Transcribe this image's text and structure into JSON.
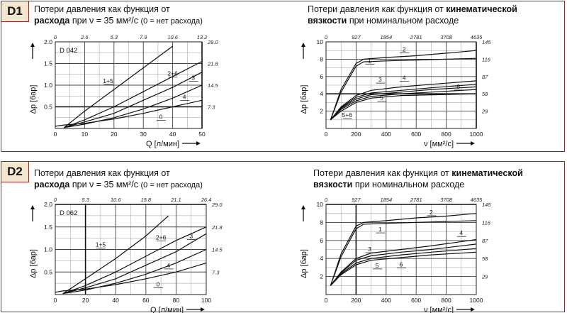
{
  "panels": [
    {
      "tag": "D1",
      "flow": {
        "title": {
          "l1": "Потери давления как функция от",
          "l2b": "расхода",
          "l2a": " при ν = 35 мм²/с ",
          "l2c": "(0 = нет расхода)"
        },
        "model": "D 042",
        "xlabel": "Q [л/мин]",
        "ylabel": "Δp [бар]",
        "xticks": [
          "0",
          "10",
          "20",
          "30",
          "40",
          "50"
        ],
        "yticks": [
          "0.5",
          "1.0",
          "1.5",
          "2.0"
        ],
        "topticks": [
          "0",
          "2.6",
          "5.3",
          "7.9",
          "10.6",
          "13.2"
        ],
        "rightticks": [
          "29.0",
          "21.8",
          "14.5",
          "7.3"
        ]
      },
      "visc": {
        "title": {
          "l1a": "Потери давления как функция от ",
          "l1b": "кинематической",
          "l2b": "вязкости",
          "l2a": " при номинальном расходе"
        },
        "xlabel": "ν [мм²/с]",
        "ylabel": "Δp [бар]",
        "xticks": [
          "0",
          "200",
          "400",
          "600",
          "800",
          "1000"
        ],
        "yticks": [
          "2",
          "4",
          "6",
          "8",
          "10"
        ],
        "topticks": [
          "0",
          "927",
          "1854",
          "2781",
          "3708",
          "4635"
        ],
        "rightticks": [
          "145",
          "116",
          "87",
          "58",
          "29"
        ]
      }
    },
    {
      "tag": "D2",
      "flow": {
        "title": {
          "l1": "Потери давления как функция от",
          "l2b": "расхода",
          "l2a": " при ν = 35 мм²/с ",
          "l2c": "(0 = нет расхода)"
        },
        "model": "D 062",
        "xlabel": "Q [л/мин]",
        "ylabel": "Δp [бар]",
        "xticks": [
          "0",
          "20",
          "40",
          "60",
          "80",
          "100"
        ],
        "yticks": [
          "0.5",
          "1.0",
          "1.5",
          "2.0"
        ],
        "topticks": [
          "0",
          "5.3",
          "10.6",
          "15.8",
          "21.1",
          "26.4"
        ],
        "rightticks": [
          "29.0",
          "21.8",
          "14.5",
          "7.3"
        ]
      },
      "visc": {
        "title": {
          "l1a": "Потери давления как функция от ",
          "l1b": "кинематической",
          "l2b": "вязкости",
          "l2a": " при номинальном расходе"
        },
        "xlabel": "ν [мм²/с]",
        "ylabel": "Δp [бар]",
        "xticks": [
          "0",
          "200",
          "400",
          "600",
          "800",
          "1000"
        ],
        "yticks": [
          "2",
          "4",
          "6",
          "8",
          "10"
        ],
        "topticks": [
          "0",
          "927",
          "1854",
          "2781",
          "3708",
          "4635"
        ],
        "rightticks": [
          "145",
          "116",
          "87",
          "58",
          "29"
        ]
      }
    }
  ],
  "chart_data": [
    {
      "type": "line",
      "title": "Потери давления как функция от расхода при ν = 35 мм²/с (0 = нет расхода)",
      "annotation": "D 042",
      "xlabel": "Q [л/мин]",
      "ylabel": "Δp [бар]",
      "xlim": [
        0,
        50
      ],
      "ylim": [
        0,
        2.0
      ],
      "series": [
        {
          "name": "1+5",
          "x": [
            3,
            10,
            20,
            30,
            40
          ],
          "y": [
            0.02,
            0.4,
            0.9,
            1.4,
            1.9
          ]
        },
        {
          "name": "2+6",
          "x": [
            3,
            10,
            20,
            30,
            40,
            50
          ],
          "y": [
            0.02,
            0.2,
            0.5,
            0.85,
            1.2,
            1.55
          ]
        },
        {
          "name": "3",
          "x": [
            3,
            10,
            20,
            30,
            40,
            50
          ],
          "y": [
            0.02,
            0.15,
            0.35,
            0.65,
            0.95,
            1.3
          ]
        },
        {
          "name": "4",
          "x": [
            3,
            10,
            20,
            30,
            40,
            50
          ],
          "y": [
            0.02,
            0.1,
            0.25,
            0.45,
            0.7,
            1.0
          ]
        },
        {
          "name": "0",
          "x": [
            0,
            3,
            10,
            20,
            30,
            40,
            50
          ],
          "y": [
            0.05,
            0.08,
            0.12,
            0.22,
            0.35,
            0.5,
            0.65
          ]
        }
      ],
      "highlight": {
        "x": 50,
        "y": 0.5
      }
    },
    {
      "type": "line",
      "title": "Потери давления как функция от кинематической вязкости при номинальном расходе",
      "xlabel": "ν [мм²/с]",
      "ylabel": "Δp [бар]",
      "xlim": [
        0,
        1000
      ],
      "ylim": [
        0,
        10
      ],
      "series": [
        {
          "name": "2",
          "x": [
            30,
            100,
            200,
            250,
            400,
            600,
            800,
            1000
          ],
          "y": [
            1,
            4.5,
            7.5,
            8,
            8.2,
            8.4,
            8.7,
            9
          ]
        },
        {
          "name": "1",
          "x": [
            30,
            100,
            200,
            250,
            400,
            600,
            800,
            1000
          ],
          "y": [
            1,
            4.2,
            7.2,
            7.7,
            7.8,
            7.9,
            8,
            8.1
          ]
        },
        {
          "name": "4",
          "x": [
            30,
            100,
            200,
            300,
            500,
            700,
            1000
          ],
          "y": [
            1,
            2.5,
            3.8,
            4.4,
            4.8,
            5.1,
            5.5
          ]
        },
        {
          "name": "3",
          "x": [
            30,
            100,
            200,
            300,
            500,
            700,
            1000
          ],
          "y": [
            1,
            2.4,
            3.6,
            4.1,
            4.4,
            4.7,
            5.1
          ]
        },
        {
          "name": "5",
          "x": [
            30,
            100,
            200,
            300,
            500,
            700,
            1000
          ],
          "y": [
            1,
            2.3,
            3.4,
            3.9,
            4.2,
            4.5,
            4.8
          ]
        },
        {
          "name": "6",
          "x": [
            30,
            100,
            200,
            300,
            500,
            700,
            1000
          ],
          "y": [
            1,
            2.2,
            3.2,
            3.7,
            4,
            4.2,
            4.5
          ]
        },
        {
          "name": "5+6",
          "x": [
            30,
            100,
            200,
            300,
            500,
            1000
          ],
          "y": [
            1,
            2.0,
            3.0,
            3.5,
            3.8,
            4.0
          ]
        }
      ],
      "highlight": {
        "x": 1000,
        "y": 4
      }
    },
    {
      "type": "line",
      "title": "Потери давления как функция от расхода при ν = 35 мм²/с (0 = нет расхода)",
      "annotation": "D 062",
      "xlabel": "Q [л/мин]",
      "ylabel": "Δp [бар]",
      "xlim": [
        0,
        100
      ],
      "ylim": [
        0,
        2.0
      ],
      "series": [
        {
          "name": "1+5",
          "x": [
            5,
            20,
            40,
            60,
            75
          ],
          "y": [
            0.02,
            0.35,
            0.8,
            1.3,
            1.75
          ]
        },
        {
          "name": "2+6",
          "x": [
            5,
            20,
            40,
            60,
            80,
            100
          ],
          "y": [
            0.02,
            0.2,
            0.5,
            0.85,
            1.2,
            1.5
          ]
        },
        {
          "name": "3",
          "x": [
            5,
            20,
            40,
            60,
            80,
            100
          ],
          "y": [
            0.02,
            0.15,
            0.35,
            0.65,
            0.95,
            1.35
          ]
        },
        {
          "name": "4",
          "x": [
            5,
            20,
            40,
            60,
            80,
            100
          ],
          "y": [
            0.02,
            0.1,
            0.25,
            0.45,
            0.7,
            1.0
          ]
        },
        {
          "name": "0",
          "x": [
            0,
            5,
            20,
            40,
            60,
            80,
            100
          ],
          "y": [
            0.05,
            0.08,
            0.12,
            0.22,
            0.35,
            0.5,
            0.7
          ]
        }
      ],
      "highlight": {
        "x": 20,
        "y": 2.0
      }
    },
    {
      "type": "line",
      "title": "Потери давления как функция от кинематической вязкости при номинальном расходе",
      "xlabel": "ν [мм²/с]",
      "ylabel": "Δp [бар]",
      "xlim": [
        0,
        1000
      ],
      "ylim": [
        0,
        10
      ],
      "series": [
        {
          "name": "2",
          "x": [
            30,
            100,
            200,
            250,
            400,
            600,
            800,
            1000
          ],
          "y": [
            1,
            4.5,
            7.6,
            8,
            8.2,
            8.5,
            8.7,
            9
          ]
        },
        {
          "name": "1",
          "x": [
            30,
            100,
            200,
            250,
            400,
            600,
            800,
            1000
          ],
          "y": [
            1,
            4.2,
            7.3,
            7.8,
            7.9,
            8,
            8.1,
            8.2
          ]
        },
        {
          "name": "4",
          "x": [
            30,
            100,
            200,
            300,
            500,
            700,
            1000
          ],
          "y": [
            1,
            2.5,
            4.0,
            4.6,
            5.0,
            5.4,
            6.1
          ]
        },
        {
          "name": "3",
          "x": [
            30,
            100,
            200,
            300,
            500,
            700,
            1000
          ],
          "y": [
            1,
            2.4,
            3.8,
            4.3,
            4.7,
            5.0,
            5.6
          ]
        },
        {
          "name": "5",
          "x": [
            30,
            100,
            200,
            300,
            500,
            700,
            1000
          ],
          "y": [
            1,
            2.3,
            3.5,
            4.0,
            4.4,
            4.7,
            5.1
          ]
        },
        {
          "name": "6",
          "x": [
            30,
            100,
            200,
            300,
            500,
            700,
            1000
          ],
          "y": [
            1,
            2.2,
            3.3,
            3.8,
            4.1,
            4.4,
            4.7
          ]
        }
      ],
      "highlight": {
        "x": 200,
        "y": 10
      }
    }
  ],
  "colors": {
    "border": "#8b2a2a",
    "tag_bg": "#f3e7cf",
    "grid": "#555555",
    "curve": "#111111"
  }
}
